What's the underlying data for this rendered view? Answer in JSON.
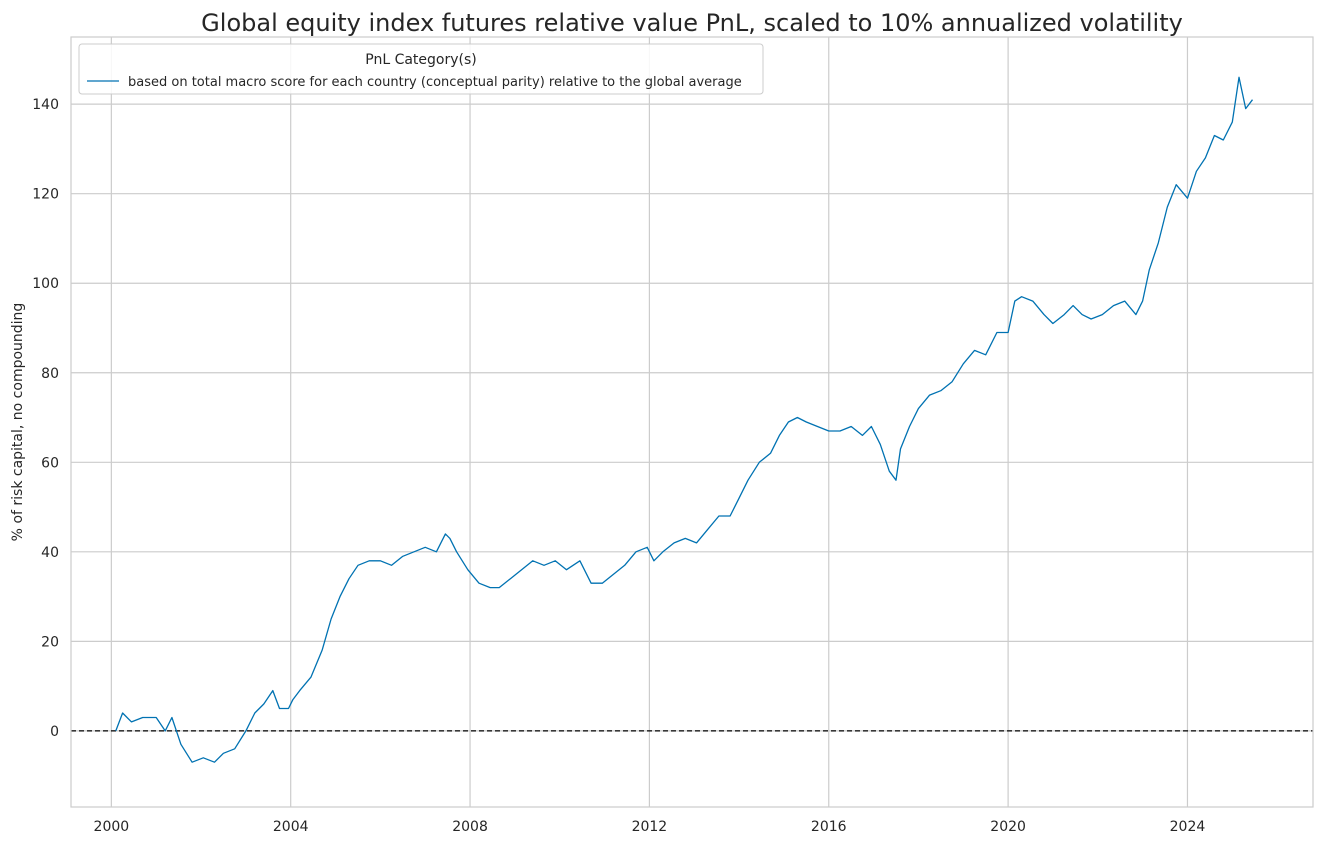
{
  "chart_data": {
    "type": "line",
    "title": "Global equity index futures relative value PnL, scaled to 10% annualized volatility",
    "xlabel": "",
    "ylabel": "% of risk capital, no compounding",
    "xlim": [
      1999.1,
      2026.8
    ],
    "ylim": [
      -17,
      155
    ],
    "x_ticks": [
      2000,
      2004,
      2008,
      2012,
      2016,
      2020,
      2024
    ],
    "x_tick_labels": [
      "2000",
      "2004",
      "2008",
      "2012",
      "2016",
      "2020",
      "2024"
    ],
    "y_ticks": [
      0,
      20,
      40,
      60,
      80,
      100,
      120,
      140
    ],
    "y_tick_labels": [
      "0",
      "20",
      "40",
      "60",
      "80",
      "100",
      "120",
      "140"
    ],
    "grid": true,
    "zero_line": {
      "y": 0,
      "style": "dashed",
      "color": "#000000"
    },
    "legend": {
      "title": "PnL Category(s)",
      "placement": "top-left",
      "entries": [
        "based on total macro score for each country (conceptual parity) relative to the global average"
      ]
    },
    "series": [
      {
        "name": "based on total macro score for each country (conceptual parity) relative to the global average",
        "color": "#0072b2",
        "x": [
          2000.1,
          2000.25,
          2000.45,
          2000.7,
          2001.0,
          2001.2,
          2001.35,
          2001.55,
          2001.8,
          2002.05,
          2002.3,
          2002.5,
          2002.75,
          2003.0,
          2003.2,
          2003.4,
          2003.6,
          2003.75,
          2003.95,
          2004.05,
          2004.2,
          2004.45,
          2004.7,
          2004.9,
          2005.1,
          2005.3,
          2005.5,
          2005.75,
          2006.0,
          2006.25,
          2006.5,
          2006.75,
          2007.0,
          2007.25,
          2007.45,
          2007.55,
          2007.7,
          2007.95,
          2008.2,
          2008.45,
          2008.65,
          2008.9,
          2009.15,
          2009.4,
          2009.65,
          2009.9,
          2010.15,
          2010.45,
          2010.7,
          2010.95,
          2011.2,
          2011.45,
          2011.7,
          2011.95,
          2012.1,
          2012.3,
          2012.55,
          2012.8,
          2013.05,
          2013.3,
          2013.55,
          2013.8,
          2014.0,
          2014.2,
          2014.45,
          2014.7,
          2014.9,
          2015.1,
          2015.3,
          2015.5,
          2015.75,
          2016.0,
          2016.25,
          2016.5,
          2016.75,
          2016.95,
          2017.15,
          2017.35,
          2017.5,
          2017.6,
          2017.8,
          2018.0,
          2018.25,
          2018.5,
          2018.75,
          2019.0,
          2019.25,
          2019.5,
          2019.75,
          2020.0,
          2020.15,
          2020.3,
          2020.55,
          2020.8,
          2021.0,
          2021.25,
          2021.45,
          2021.65,
          2021.85,
          2022.1,
          2022.35,
          2022.6,
          2022.85,
          2023.0,
          2023.15,
          2023.35,
          2023.55,
          2023.75,
          2024.0,
          2024.2,
          2024.4,
          2024.6,
          2024.8,
          2025.0,
          2025.15,
          2025.3,
          2025.45
        ],
        "values": [
          0,
          4,
          2,
          3,
          3,
          0,
          3,
          -3,
          -7,
          -6,
          -7,
          -5,
          -4,
          0,
          4,
          6,
          9,
          5,
          5,
          7,
          9,
          12,
          18,
          25,
          30,
          34,
          37,
          38,
          38,
          37,
          39,
          40,
          41,
          40,
          44,
          43,
          40,
          36,
          33,
          32,
          32,
          34,
          36,
          38,
          37,
          38,
          36,
          38,
          33,
          33,
          35,
          37,
          40,
          41,
          38,
          40,
          42,
          43,
          42,
          45,
          48,
          48,
          52,
          56,
          60,
          62,
          66,
          69,
          70,
          69,
          68,
          67,
          67,
          68,
          66,
          68,
          64,
          58,
          56,
          63,
          68,
          72,
          75,
          76,
          78,
          82,
          85,
          84,
          89,
          89,
          96,
          97,
          96,
          93,
          91,
          93,
          95,
          93,
          92,
          93,
          95,
          96,
          93,
          96,
          103,
          109,
          117,
          122,
          119,
          125,
          128,
          133,
          132,
          136,
          146,
          139,
          141
        ]
      }
    ]
  }
}
